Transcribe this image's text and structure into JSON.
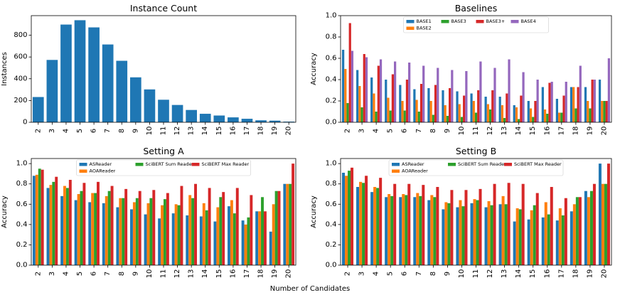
{
  "figure": {
    "xlabel": "Number of Candidates"
  },
  "colors": {
    "blue": "#1f77b4",
    "orange": "#ff7f0e",
    "green": "#2ca02c",
    "red": "#d62728",
    "purple": "#9467bd"
  },
  "chart_data": [
    {
      "type": "bar",
      "title": "Instance Count",
      "ylabel": "Instances",
      "xlabel": "",
      "ylim": [
        0,
        980
      ],
      "yticks": [
        0,
        200,
        400,
        600,
        800
      ],
      "categories": [
        "2",
        "3",
        "4",
        "5",
        "6",
        "7",
        "8",
        "9",
        "10",
        "11",
        "12",
        "13",
        "14",
        "15",
        "16",
        "17",
        "18",
        "19",
        "20"
      ],
      "series": [
        {
          "color": "#1f77b4",
          "values": [
            232,
            573,
            898,
            938,
            872,
            715,
            565,
            413,
            302,
            207,
            159,
            113,
            78,
            62,
            45,
            32,
            18,
            15,
            6
          ]
        }
      ],
      "grid": false
    },
    {
      "type": "bar",
      "title": "Baselines",
      "ylabel": "Accuracy",
      "xlabel": "",
      "ylim": [
        0,
        1.0
      ],
      "yticks": [
        0.0,
        0.2,
        0.4,
        0.6,
        0.8,
        1.0
      ],
      "legend": "top-center",
      "legend_rows": [
        [
          "BASE1",
          "BASE3",
          "BASE3+",
          "BASE4"
        ],
        [
          "BASE2"
        ]
      ],
      "categories": [
        "2",
        "3",
        "4",
        "5",
        "6",
        "7",
        "8",
        "9",
        "10",
        "11",
        "12",
        "13",
        "14",
        "15",
        "16",
        "17",
        "18",
        "19",
        "20"
      ],
      "series": [
        {
          "name": "BASE1",
          "color": "#1f77b4",
          "values": [
            0.68,
            0.49,
            0.42,
            0.4,
            0.35,
            0.31,
            0.32,
            0.3,
            0.29,
            0.27,
            0.24,
            0.24,
            0.16,
            0.2,
            0.33,
            0.22,
            0.33,
            0.33,
            0.4
          ]
        },
        {
          "name": "BASE2",
          "color": "#ff7f0e",
          "values": [
            0.5,
            0.34,
            0.27,
            0.23,
            0.2,
            0.21,
            0.2,
            0.16,
            0.17,
            0.2,
            0.17,
            0.16,
            0.14,
            0.13,
            0.12,
            0.09,
            0.33,
            0.2,
            0.2
          ]
        },
        {
          "name": "BASE3",
          "color": "#2ca02c",
          "values": [
            0.18,
            0.14,
            0.1,
            0.11,
            0.11,
            0.1,
            0.07,
            0.06,
            0.05,
            0.09,
            0.12,
            0.04,
            0.03,
            0.05,
            0.08,
            0.09,
            0.13,
            0.13,
            0.2
          ]
        },
        {
          "name": "BASE3+",
          "color": "#d62728",
          "values": [
            0.93,
            0.64,
            0.53,
            0.45,
            0.4,
            0.36,
            0.35,
            0.32,
            0.25,
            0.3,
            0.3,
            0.27,
            0.25,
            0.2,
            0.37,
            0.25,
            0.33,
            0.4,
            0.2
          ]
        },
        {
          "name": "BASE4",
          "color": "#9467bd",
          "values": [
            0.67,
            0.61,
            0.59,
            0.57,
            0.56,
            0.53,
            0.51,
            0.49,
            0.48,
            0.57,
            0.51,
            0.59,
            0.47,
            0.4,
            0.38,
            0.38,
            0.53,
            0.4,
            0.6
          ]
        }
      ],
      "grid": false
    },
    {
      "type": "bar",
      "title": "Setting A",
      "ylabel": "Accuracy",
      "xlabel": "",
      "ylim": [
        0,
        1.05
      ],
      "yticks": [
        0.0,
        0.2,
        0.4,
        0.6,
        0.8,
        1.0
      ],
      "legend": "top-center",
      "legend_rows": [
        [
          "ASReader",
          "SciBERT Sum Reader",
          "SciBERT Max Reader"
        ],
        [
          "AOAReader"
        ]
      ],
      "categories": [
        "2",
        "3",
        "4",
        "5",
        "6",
        "7",
        "8",
        "9",
        "10",
        "11",
        "12",
        "13",
        "14",
        "15",
        "16",
        "17",
        "18",
        "19",
        "20"
      ],
      "series": [
        {
          "name": "ASReader",
          "color": "#1f77b4",
          "values": [
            0.88,
            0.76,
            0.68,
            0.64,
            0.62,
            0.61,
            0.57,
            0.55,
            0.5,
            0.46,
            0.51,
            0.49,
            0.48,
            0.43,
            0.58,
            0.44,
            0.53,
            0.33,
            0.8
          ]
        },
        {
          "name": "AOAReader",
          "color": "#ff7f0e",
          "values": [
            0.89,
            0.79,
            0.78,
            0.7,
            0.71,
            0.68,
            0.66,
            0.62,
            0.61,
            0.59,
            0.6,
            0.69,
            0.61,
            0.57,
            0.64,
            0.4,
            0.53,
            0.6,
            0.8
          ]
        },
        {
          "name": "SciBERT Sum Reader",
          "color": "#2ca02c",
          "values": [
            0.95,
            0.82,
            0.76,
            0.73,
            0.71,
            0.73,
            0.66,
            0.66,
            0.66,
            0.65,
            0.59,
            0.66,
            0.54,
            0.67,
            0.51,
            0.47,
            0.67,
            0.73,
            0.8
          ]
        },
        {
          "name": "SciBERT Max Reader",
          "color": "#d62728",
          "values": [
            0.94,
            0.87,
            0.84,
            0.81,
            0.82,
            0.78,
            0.75,
            0.73,
            0.74,
            0.71,
            0.78,
            0.8,
            0.76,
            0.72,
            0.76,
            0.69,
            0.53,
            0.73,
            1.0
          ]
        }
      ],
      "grid": false
    },
    {
      "type": "bar",
      "title": "Setting B",
      "ylabel": "Accuracy",
      "xlabel": "",
      "ylim": [
        0,
        1.05
      ],
      "yticks": [
        0.0,
        0.2,
        0.4,
        0.6,
        0.8,
        1.0
      ],
      "legend": "top-center",
      "legend_rows": [
        [
          "ASReader",
          "SciBERT Sum Reader",
          "SciBERT Max Reader"
        ],
        [
          "AOAReader"
        ]
      ],
      "categories": [
        "2",
        "3",
        "4",
        "5",
        "6",
        "7",
        "8",
        "9",
        "10",
        "11",
        "12",
        "13",
        "14",
        "15",
        "16",
        "17",
        "18",
        "19",
        "20"
      ],
      "series": [
        {
          "name": "ASReader",
          "color": "#1f77b4",
          "values": [
            0.91,
            0.77,
            0.72,
            0.67,
            0.67,
            0.67,
            0.64,
            0.55,
            0.57,
            0.61,
            0.57,
            0.6,
            0.43,
            0.45,
            0.47,
            0.44,
            0.53,
            0.73,
            1.0
          ]
        },
        {
          "name": "AOAReader",
          "color": "#ff7f0e",
          "values": [
            0.88,
            0.82,
            0.77,
            0.7,
            0.7,
            0.71,
            0.69,
            0.62,
            0.64,
            0.65,
            0.63,
            0.68,
            0.56,
            0.54,
            0.62,
            0.56,
            0.6,
            0.67,
            0.8
          ]
        },
        {
          "name": "SciBERT Sum Reader",
          "color": "#2ca02c",
          "values": [
            0.93,
            0.81,
            0.76,
            0.68,
            0.69,
            0.68,
            0.67,
            0.61,
            0.58,
            0.64,
            0.59,
            0.6,
            0.55,
            0.59,
            0.5,
            0.49,
            0.67,
            0.73,
            0.8
          ]
        },
        {
          "name": "SciBERT Max Reader",
          "color": "#d62728",
          "values": [
            0.96,
            0.88,
            0.86,
            0.8,
            0.8,
            0.79,
            0.77,
            0.74,
            0.74,
            0.75,
            0.8,
            0.81,
            0.8,
            0.71,
            0.77,
            0.66,
            0.67,
            0.8,
            1.0
          ]
        }
      ],
      "grid": false
    }
  ]
}
